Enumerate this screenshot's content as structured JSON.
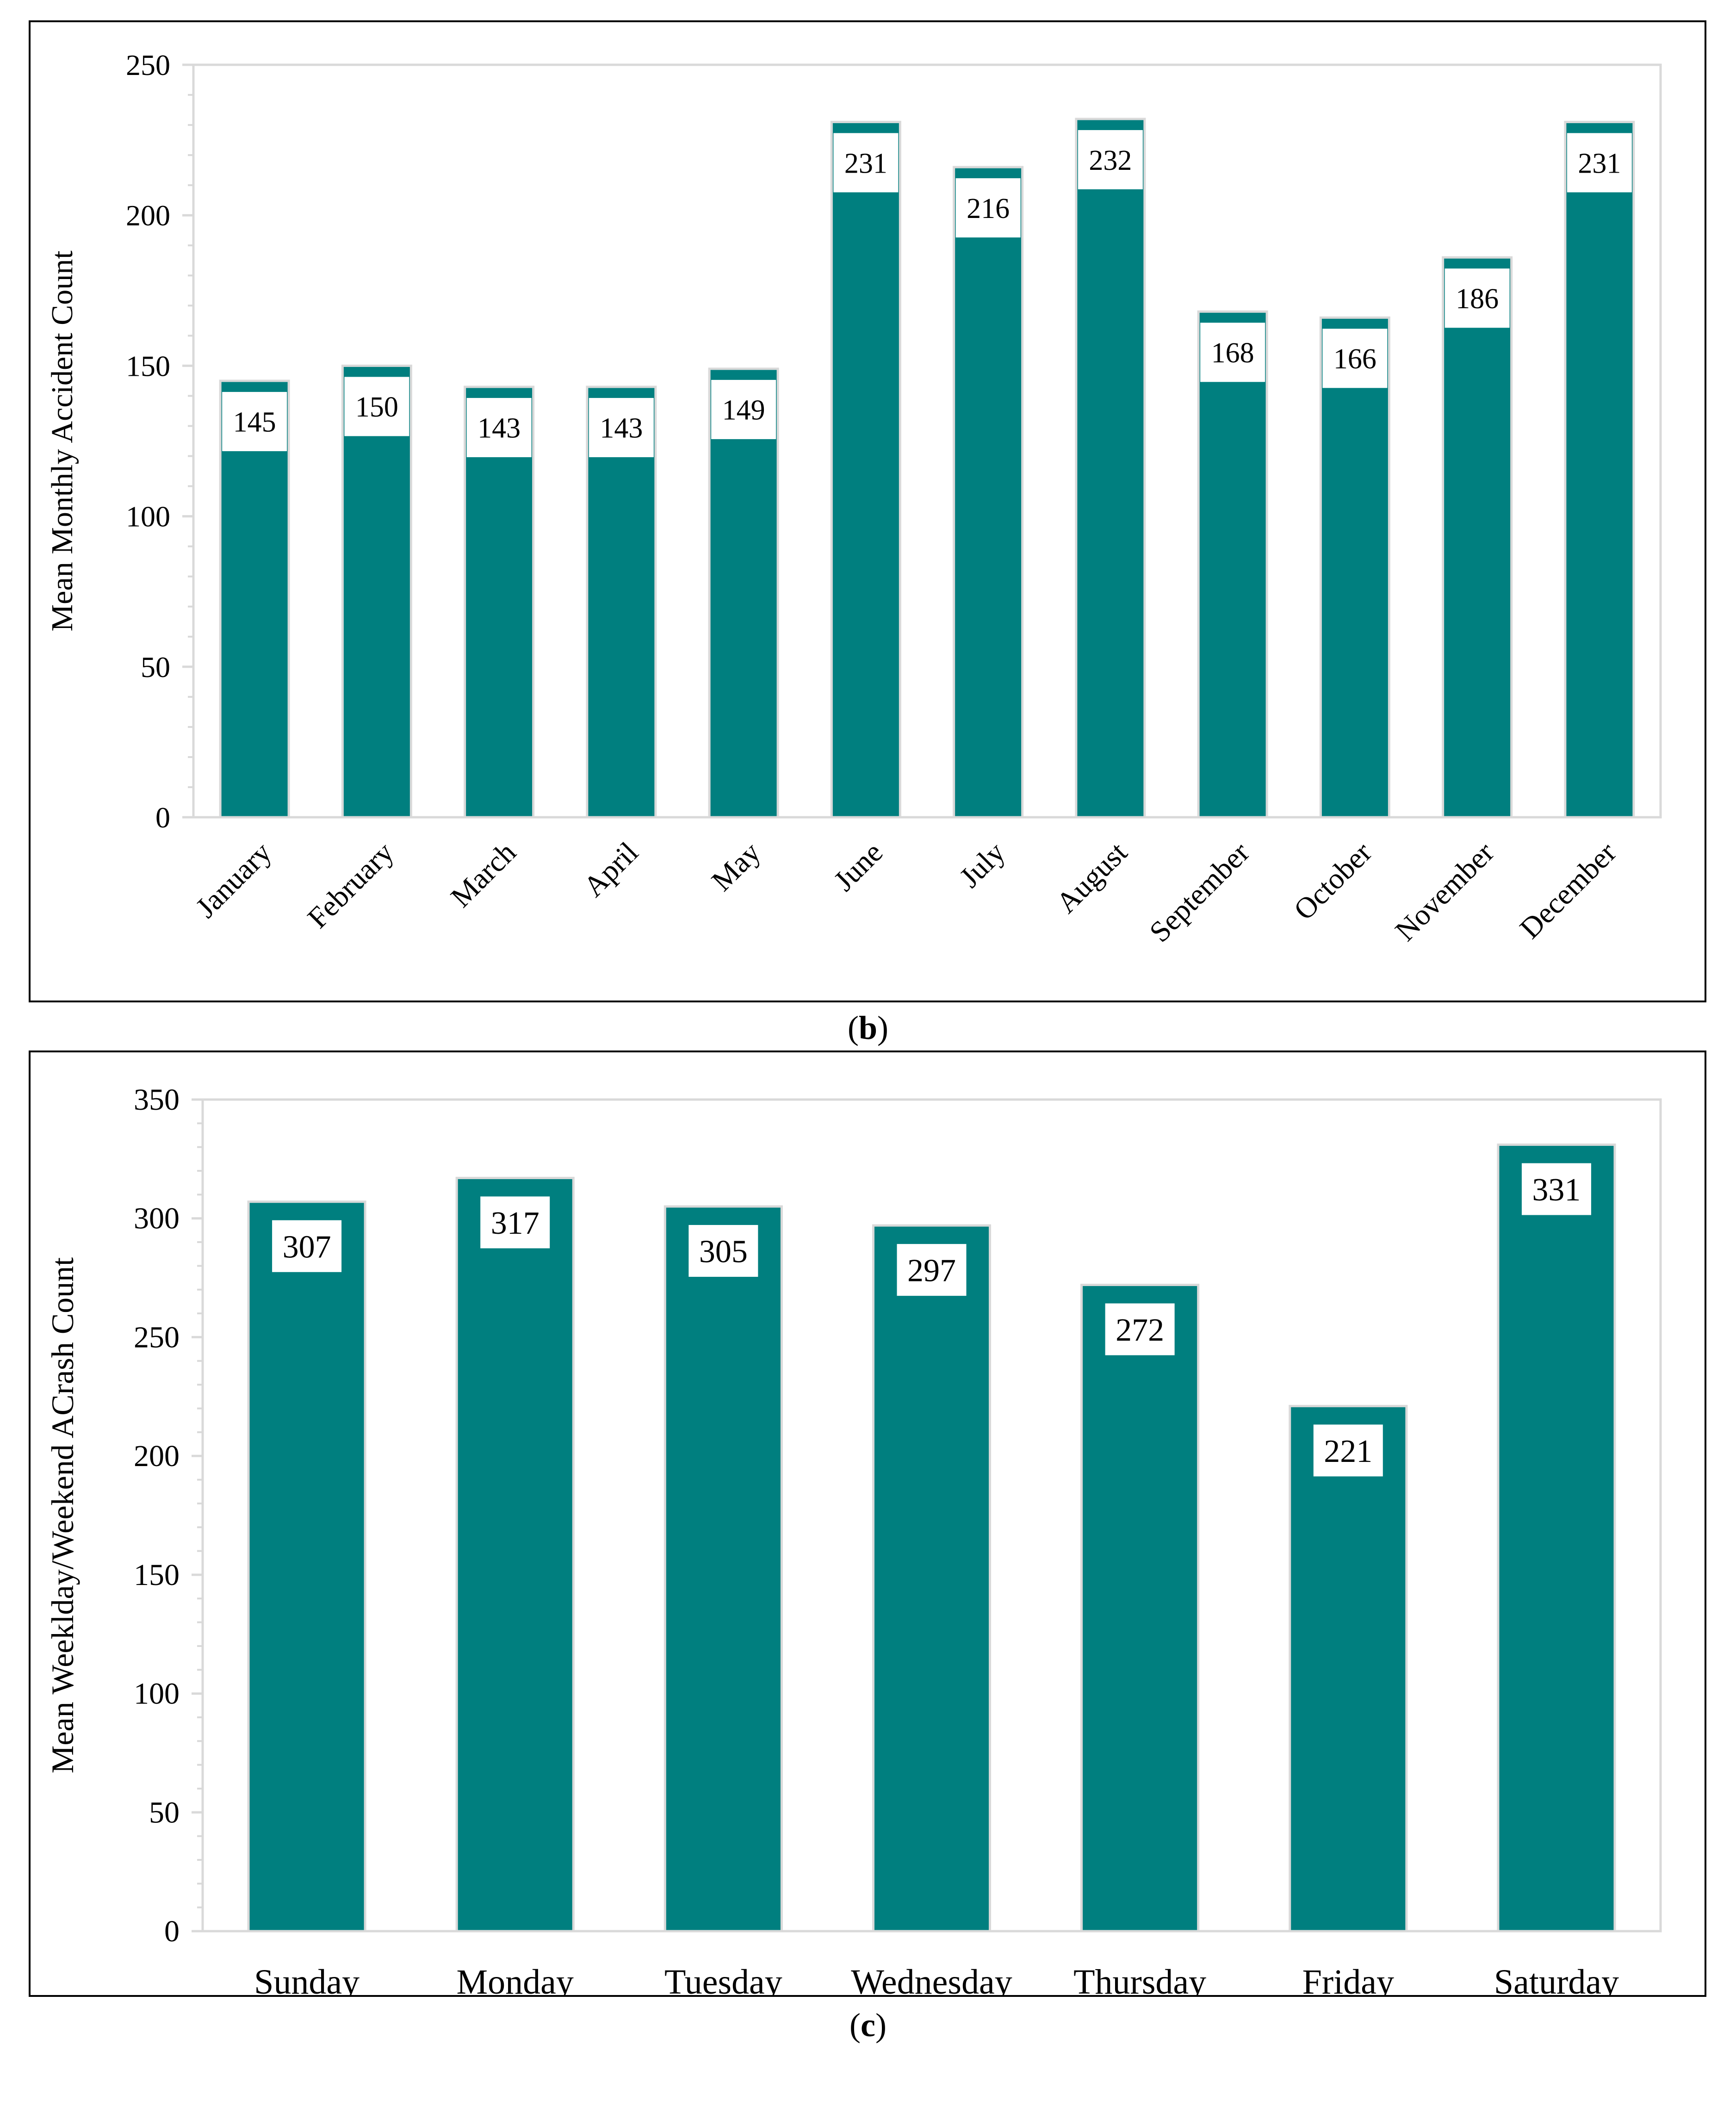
{
  "colors": {
    "bar": "#007f7f",
    "axis": "#d9d9d9",
    "label_bg": "#ffffff"
  },
  "chart_data": [
    {
      "type": "bar",
      "panel": "b",
      "title": "",
      "xlabel": "",
      "ylabel": "Mean Monthly Accident Count",
      "ylim": [
        0,
        250
      ],
      "yticks": [
        0,
        50,
        100,
        150,
        200,
        250
      ],
      "categories": [
        "January",
        "February",
        "March",
        "April",
        "May",
        "June",
        "July",
        "August",
        "September",
        "October",
        "November",
        "December"
      ],
      "values": [
        145,
        150,
        143,
        143,
        149,
        231,
        216,
        232,
        168,
        166,
        186,
        231
      ],
      "data_labels": [
        "145",
        "150",
        "143",
        "143",
        "149",
        "231",
        "216",
        "232",
        "168",
        "166",
        "186",
        "231"
      ],
      "grid": false,
      "legend": "none"
    },
    {
      "type": "bar",
      "panel": "c",
      "title": "",
      "xlabel": "",
      "ylabel": "Mean Weeklday/Weekend  ACrash Count",
      "ylim": [
        0,
        350
      ],
      "yticks": [
        0,
        50,
        100,
        150,
        200,
        250,
        300,
        350
      ],
      "categories": [
        "Sunday",
        "Monday",
        "Tuesday",
        "Wednesday",
        "Thursday",
        "Friday",
        "Saturday"
      ],
      "values": [
        307,
        317,
        305,
        297,
        272,
        221,
        331
      ],
      "data_labels": [
        "307",
        "317",
        "305",
        "297",
        "272",
        "221",
        "331"
      ],
      "grid": false,
      "legend": "none"
    }
  ],
  "captions": {
    "b": {
      "open": "(",
      "letter": "b",
      "close": ")"
    },
    "c": {
      "open": "(",
      "letter": "c",
      "close": ")"
    }
  }
}
